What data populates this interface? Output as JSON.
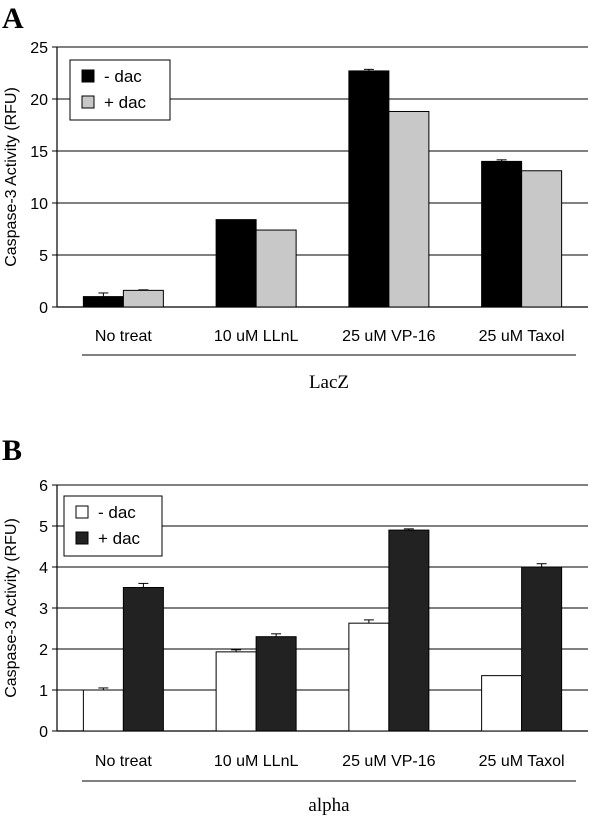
{
  "chart_data": [
    {
      "panel": "A",
      "type": "bar",
      "ylabel": "Caspase-3 Activity (RFU)",
      "group_label": "LacZ",
      "ylim": [
        0,
        25
      ],
      "yticks": [
        0,
        5,
        10,
        15,
        20,
        25
      ],
      "grid": true,
      "legend_position": "top-left",
      "categories": [
        "No treat",
        "10 uM LLnL",
        "25 uM VP-16",
        "25 uM Taxol"
      ],
      "series": [
        {
          "name": "- dac",
          "color": "#000000",
          "values": [
            1.0,
            8.4,
            22.7,
            14.0
          ],
          "errors": [
            0.35,
            0,
            0.15,
            0.15
          ]
        },
        {
          "name": "+ dac",
          "color": "#c8c8c8",
          "values": [
            1.6,
            7.4,
            18.8,
            13.1
          ],
          "errors": [
            0.05,
            0,
            0,
            0
          ]
        }
      ]
    },
    {
      "panel": "B",
      "type": "bar",
      "ylabel": "Caspase-3 Activity (RFU)",
      "group_label": "alpha",
      "ylim": [
        0,
        6
      ],
      "yticks": [
        0,
        1,
        2,
        3,
        4,
        5,
        6
      ],
      "grid": true,
      "legend_position": "top-left",
      "categories": [
        "No treat",
        "10 uM LLnL",
        "25 uM VP-16",
        "25 uM Taxol"
      ],
      "series": [
        {
          "name": "- dac",
          "color": "#ffffff",
          "values": [
            1.0,
            1.93,
            2.63,
            1.35
          ],
          "errors": [
            0.05,
            0.05,
            0.08,
            0
          ]
        },
        {
          "name": "+ dac",
          "color": "#222222",
          "values": [
            3.5,
            2.3,
            4.9,
            4.0
          ],
          "errors": [
            0.1,
            0.07,
            0.03,
            0.08
          ]
        }
      ]
    }
  ]
}
